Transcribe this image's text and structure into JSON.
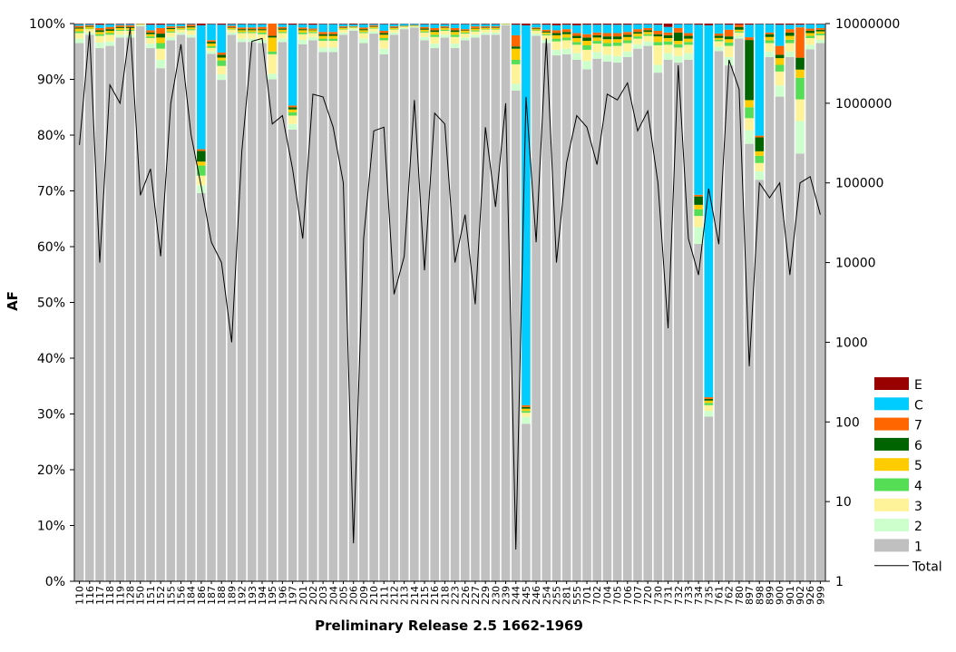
{
  "chart_data": {
    "type": "bar",
    "stacked": true,
    "percent": true,
    "title": "",
    "xlabel": "Preliminary Release 2.5 1662-1969",
    "ylabel": "AF",
    "ylim": [
      0,
      100
    ],
    "y_ticks": [
      "0%",
      "10%",
      "20%",
      "30%",
      "40%",
      "50%",
      "60%",
      "70%",
      "80%",
      "90%",
      "100%"
    ],
    "y2_log": true,
    "y2_ticks": [
      "1",
      "10",
      "100",
      "1000",
      "10000",
      "100000",
      "1000000",
      "10000000"
    ],
    "legend_position": "right",
    "categories": [
      "110",
      "116",
      "117",
      "118",
      "119",
      "128",
      "150",
      "151",
      "152",
      "155",
      "156",
      "184",
      "186",
      "187",
      "188",
      "189",
      "192",
      "193",
      "194",
      "195",
      "196",
      "197",
      "201",
      "202",
      "203",
      "204",
      "205",
      "206",
      "209",
      "210",
      "211",
      "212",
      "213",
      "214",
      "215",
      "216",
      "218",
      "223",
      "226",
      "227",
      "229",
      "230",
      "239",
      "244",
      "245",
      "246",
      "254",
      "255",
      "281",
      "555",
      "701",
      "702",
      "704",
      "705",
      "706",
      "707",
      "720",
      "730",
      "731",
      "732",
      "733",
      "734",
      "735",
      "761",
      "762",
      "780",
      "897",
      "898",
      "899",
      "900",
      "901",
      "902",
      "926",
      "999"
    ],
    "series": [
      {
        "name": "1",
        "color": "#c0c0c0",
        "values": [
          96.5,
          98,
          95.6,
          96,
          97.5,
          97.5,
          99.5,
          95.6,
          92,
          97,
          98,
          97.5,
          68.9,
          95.5,
          89.9,
          98,
          96.7,
          96.7,
          96.5,
          90,
          96.7,
          81,
          96.3,
          97,
          95,
          95,
          98,
          98.7,
          96.5,
          98.2,
          94.5,
          98,
          98.9,
          99.3,
          97,
          95.6,
          97.5,
          95.6,
          97,
          97.5,
          98,
          98,
          99.7,
          88,
          27.2,
          97.8,
          96.5,
          94.3,
          94.5,
          93.5,
          91.8,
          93.7,
          93.2,
          93,
          94,
          95.5,
          96,
          91.2,
          93.5,
          93,
          93.5,
          60.5,
          29.1,
          96,
          92.5,
          97.3,
          80,
          72,
          94,
          86.9,
          94,
          79,
          95.4,
          96.5
        ]
      },
      {
        "name": "2",
        "color": "#ccffcc",
        "values": [
          0.8,
          0.4,
          1,
          0.8,
          0.5,
          0.5,
          0.2,
          0.8,
          1.5,
          0.6,
          0.4,
          0.5,
          1.4,
          0.5,
          1,
          0.4,
          0.6,
          0.6,
          0.6,
          1,
          0.6,
          1,
          0.8,
          0.6,
          0.8,
          0.8,
          0.4,
          0.3,
          0.8,
          0.4,
          1,
          0.4,
          0.2,
          0.1,
          0.6,
          0.8,
          0.5,
          0.8,
          0.5,
          0.5,
          0.4,
          0.4,
          0.1,
          1.2,
          1.2,
          0.4,
          0.6,
          1,
          1,
          1.2,
          1.5,
          1.2,
          1.2,
          1.2,
          1,
          0.8,
          0.8,
          1.4,
          1.2,
          1.2,
          1.2,
          3,
          1,
          0.8,
          1.5,
          0.5,
          2.5,
          1.5,
          1,
          2,
          1,
          6,
          0.8,
          0.6
        ]
      },
      {
        "name": "3",
        "color": "#fff39a",
        "values": [
          1,
          0.6,
          1.2,
          1.2,
          0.7,
          0.7,
          0.1,
          1,
          2,
          0.8,
          0.5,
          0.8,
          1.7,
          0.6,
          1.5,
          0.5,
          1,
          1,
          1,
          3.5,
          1,
          1.5,
          1,
          0.7,
          1.2,
          1.2,
          0.5,
          0.2,
          1,
          0.5,
          1.5,
          0.5,
          0.2,
          0.1,
          0.8,
          1.2,
          0.7,
          1.2,
          0.7,
          0.6,
          0.5,
          0.5,
          0.05,
          3.5,
          0.7,
          0.5,
          0.8,
          1.5,
          1.5,
          1.5,
          2,
          1.5,
          1.5,
          1.8,
          1.5,
          1,
          1,
          3.5,
          1.5,
          1.5,
          1.5,
          2,
          1,
          1,
          2,
          0.6,
          2.2,
          1.5,
          1.5,
          2.5,
          1.5,
          4,
          1.2,
          0.8
        ]
      },
      {
        "name": "4",
        "color": "#55dd55",
        "values": [
          0.3,
          0.1,
          0.3,
          0.3,
          0.2,
          0.2,
          0.05,
          0.3,
          1,
          0.2,
          0.1,
          0.2,
          1.8,
          0.3,
          1,
          0.1,
          0.2,
          0.2,
          0.3,
          0.5,
          0.2,
          0.6,
          0.3,
          0.2,
          0.4,
          0.4,
          0.1,
          0.1,
          0.2,
          0.1,
          0.4,
          0.1,
          0.05,
          0.05,
          0.2,
          0.4,
          0.2,
          0.4,
          0.2,
          0.2,
          0.1,
          0.1,
          0.05,
          0.8,
          0.3,
          0.1,
          0.2,
          0.5,
          0.5,
          0.5,
          0.8,
          0.5,
          0.6,
          0.6,
          0.5,
          0.4,
          0.3,
          0.6,
          0.6,
          0.6,
          0.5,
          1.2,
          0.4,
          0.3,
          0.6,
          0.2,
          2,
          1.3,
          0.5,
          1.2,
          0.6,
          4,
          0.4,
          0.3
        ]
      },
      {
        "name": "5",
        "color": "#ffcc00",
        "values": [
          0.5,
          0.3,
          0.4,
          0.4,
          0.3,
          0.3,
          0.05,
          0.4,
          1,
          0.4,
          0.2,
          0.3,
          0.7,
          0.5,
          0.5,
          0.2,
          0.3,
          0.3,
          0.4,
          2.5,
          0.4,
          0.5,
          0.4,
          0.3,
          0.5,
          0.5,
          0.2,
          0.1,
          0.3,
          0.2,
          0.6,
          0.2,
          0.1,
          0.1,
          0.3,
          0.5,
          0.3,
          0.5,
          0.3,
          0.3,
          0.2,
          0.2,
          0.05,
          2,
          0.4,
          0.2,
          0.3,
          0.6,
          0.6,
          0.7,
          0.8,
          0.6,
          0.7,
          0.6,
          0.6,
          0.5,
          0.4,
          1,
          0.6,
          0.6,
          0.6,
          0.8,
          0.4,
          0.3,
          0.6,
          0.3,
          1.3,
          0.8,
          0.6,
          1.2,
          0.7,
          1.5,
          0.5,
          0.4
        ]
      },
      {
        "name": "6",
        "color": "#006400",
        "values": [
          0.2,
          0.1,
          0.3,
          0.3,
          0.2,
          0.2,
          0.05,
          0.3,
          0.7,
          0.2,
          0.1,
          0.2,
          1.9,
          0.3,
          0.5,
          0.1,
          0.2,
          0.2,
          0.2,
          0.3,
          0.2,
          0.4,
          0.2,
          0.1,
          0.3,
          0.3,
          0.1,
          0.05,
          0.2,
          0.1,
          0.3,
          0.1,
          0.05,
          0.05,
          0.2,
          0.3,
          0.1,
          0.3,
          0.1,
          0.1,
          0.1,
          0.1,
          0.02,
          0.4,
          0.3,
          0.1,
          0.2,
          0.4,
          0.4,
          0.4,
          0.6,
          0.4,
          0.5,
          0.5,
          0.4,
          0.3,
          0.3,
          0.4,
          0.5,
          1.5,
          0.5,
          1.5,
          0.3,
          0.4,
          0.5,
          0.5,
          11,
          2.5,
          0.5,
          0.6,
          0.6,
          2.2,
          0.4,
          0.3
        ]
      },
      {
        "name": "7",
        "color": "#ff6600",
        "values": [
          0.3,
          0.2,
          0.4,
          0.4,
          0.3,
          0.3,
          0.05,
          0.4,
          1,
          0.3,
          0.2,
          0.3,
          0.3,
          0.3,
          0.4,
          0.3,
          0.3,
          0.3,
          0.4,
          2.2,
          0.3,
          0.3,
          0.3,
          0.2,
          0.4,
          0.4,
          0.2,
          0.1,
          0.3,
          0.2,
          0.4,
          0.2,
          0.05,
          0.05,
          0.3,
          0.4,
          0.2,
          0.4,
          0.2,
          0.3,
          0.2,
          0.2,
          0.02,
          2,
          0.3,
          0.2,
          0.3,
          0.5,
          0.5,
          0.5,
          0.6,
          0.5,
          0.6,
          0.6,
          0.5,
          0.5,
          0.4,
          0.6,
          0.5,
          0.8,
          0.5,
          0.3,
          0.3,
          0.4,
          1.2,
          0.4,
          0.5,
          0.3,
          0.3,
          1.6,
          0.6,
          5.6,
          0.4,
          0.3
        ]
      },
      {
        "name": "C",
        "color": "#00ccff",
        "values": [
          0.3,
          0.2,
          0.6,
          0.5,
          0.2,
          0.2,
          0,
          1,
          0.6,
          0.4,
          0.4,
          0.1,
          22,
          2.9,
          5,
          0.3,
          0.6,
          0.6,
          0.5,
          0,
          0.5,
          14.5,
          0.6,
          0.7,
          1.4,
          1.4,
          0.4,
          0.3,
          0.6,
          0.2,
          1.2,
          0.4,
          0.3,
          0.2,
          0.5,
          0.7,
          0.4,
          0.7,
          0.9,
          0.4,
          0.4,
          0.4,
          0,
          1.9,
          65.6,
          0.6,
          0.9,
          0.9,
          0.8,
          1.4,
          1.7,
          1.4,
          1.5,
          1.5,
          1.3,
          0.9,
          0.7,
          1.1,
          1,
          0.7,
          1.6,
          30.5,
          65.7,
          1.7,
          0.9,
          0,
          2.3,
          20,
          1.5,
          3.8,
          0.8,
          0.5,
          0.8,
          0.7
        ]
      },
      {
        "name": "E",
        "color": "#990000",
        "values": [
          0.1,
          0.1,
          0.2,
          0.1,
          0.1,
          0.1,
          0,
          0.2,
          0.2,
          0.1,
          0.1,
          0.1,
          0.3,
          0.1,
          0.2,
          0.1,
          0.1,
          0.1,
          0.1,
          0,
          0.1,
          0.2,
          0.1,
          0.2,
          0.1,
          0.1,
          0.1,
          0.15,
          0.1,
          0.1,
          0.1,
          0.1,
          0.05,
          0.05,
          0.1,
          0.1,
          0.1,
          0.1,
          0.1,
          0.1,
          0.1,
          0.1,
          0.01,
          0.2,
          0.3,
          0.1,
          0.2,
          0.3,
          0.2,
          0.3,
          0.2,
          0.2,
          0.2,
          0.2,
          0.2,
          0.1,
          0.1,
          0.2,
          0.6,
          0.1,
          0.1,
          0.2,
          0.3,
          0.1,
          0.2,
          0.2,
          0.2,
          0.1,
          0.1,
          0.2,
          0.2,
          0.2,
          0.1,
          0.1
        ]
      }
    ],
    "total": {
      "name": "Total",
      "color": "#000000",
      "axis": "right",
      "values": [
        300000,
        8000000,
        10000,
        1700000,
        1000000,
        9000000,
        70000,
        150000,
        12000,
        1000000,
        5500000,
        400000,
        90000,
        18000,
        10000,
        1000,
        250000,
        6000000,
        6500000,
        550000,
        700000,
        150000,
        20000,
        1300000,
        1200000,
        500000,
        100000,
        3,
        20000,
        450000,
        500000,
        4000,
        12000,
        1100000,
        8000,
        750000,
        550000,
        10000,
        40000,
        3000,
        500000,
        50000,
        1000000,
        2.5,
        1200000,
        18000,
        6500000,
        10000,
        180000,
        700000,
        500000,
        170000,
        1300000,
        1100000,
        1800000,
        450000,
        800000,
        100000,
        1500,
        3000000,
        20000,
        7000,
        85000,
        17000,
        3500000,
        1500000,
        500,
        100000,
        65000,
        100000,
        7000,
        100000,
        120000,
        40000
      ]
    }
  }
}
